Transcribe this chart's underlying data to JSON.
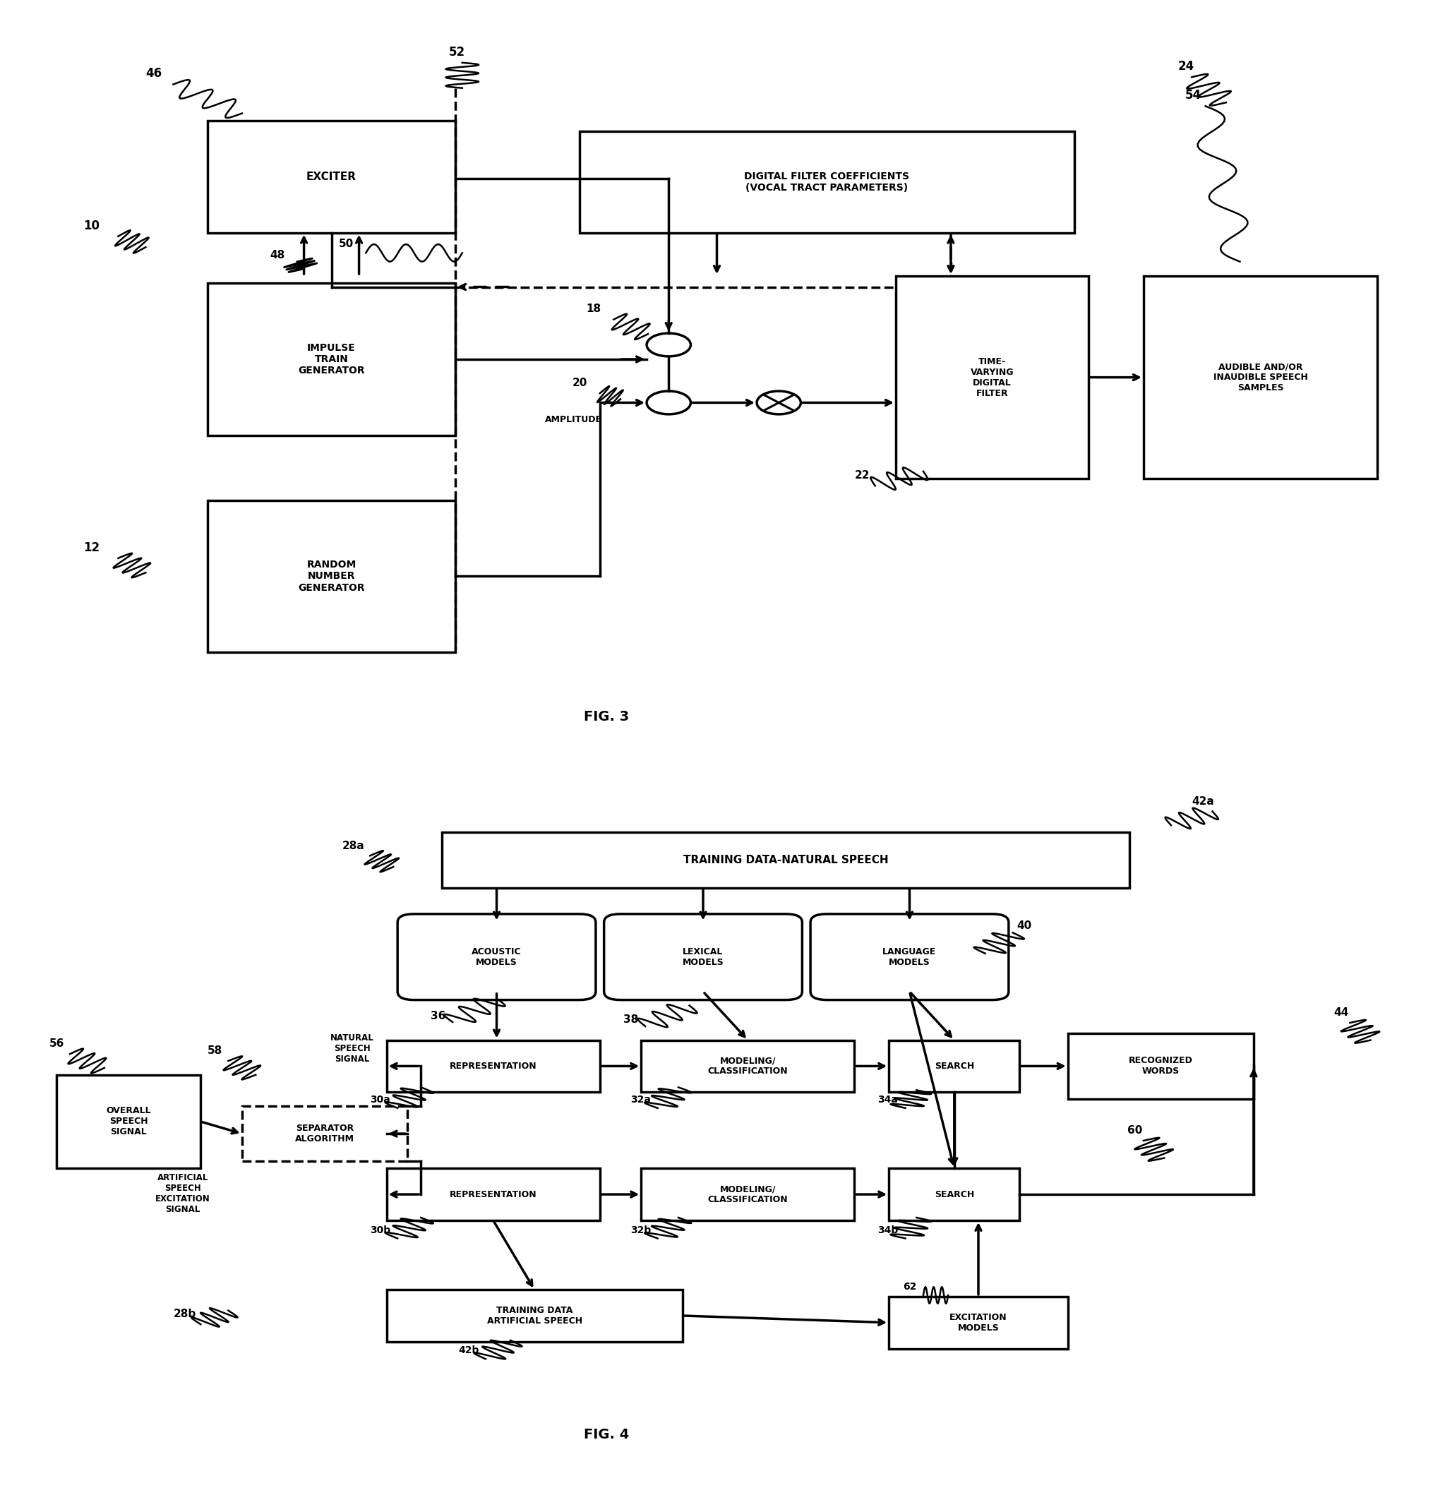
{
  "bg_color": "#ffffff",
  "fig3": {
    "title": "FIG. 3",
    "exciter": [
      0.13,
      0.72,
      0.18,
      0.14
    ],
    "impulse": [
      0.13,
      0.47,
      0.18,
      0.17
    ],
    "random": [
      0.13,
      0.18,
      0.18,
      0.17
    ],
    "dfcoef": [
      0.42,
      0.72,
      0.32,
      0.13
    ],
    "tvdf": [
      0.6,
      0.4,
      0.13,
      0.22
    ],
    "audible": [
      0.8,
      0.4,
      0.17,
      0.22
    ],
    "sum_circle": [
      0.42,
      0.56
    ],
    "mul_circle": [
      0.51,
      0.47
    ],
    "lw": 2.5
  },
  "fig4": {
    "title": "FIG. 4",
    "train_nat": [
      0.3,
      0.85,
      0.5,
      0.08
    ],
    "acoustic": [
      0.28,
      0.7,
      0.12,
      0.1
    ],
    "lexical": [
      0.43,
      0.7,
      0.12,
      0.1
    ],
    "language": [
      0.58,
      0.7,
      0.12,
      0.1
    ],
    "rep_a": [
      0.26,
      0.555,
      0.155,
      0.075
    ],
    "model_a": [
      0.445,
      0.555,
      0.155,
      0.075
    ],
    "search_a": [
      0.625,
      0.555,
      0.095,
      0.075
    ],
    "recog": [
      0.755,
      0.545,
      0.135,
      0.095
    ],
    "overall": [
      0.02,
      0.445,
      0.105,
      0.135
    ],
    "separator": [
      0.155,
      0.455,
      0.12,
      0.08
    ],
    "rep_b": [
      0.26,
      0.37,
      0.155,
      0.075
    ],
    "model_b": [
      0.445,
      0.37,
      0.155,
      0.075
    ],
    "search_b": [
      0.625,
      0.37,
      0.095,
      0.075
    ],
    "train_art": [
      0.26,
      0.195,
      0.215,
      0.075
    ],
    "excitation": [
      0.625,
      0.185,
      0.13,
      0.075
    ],
    "lw": 2.5
  }
}
